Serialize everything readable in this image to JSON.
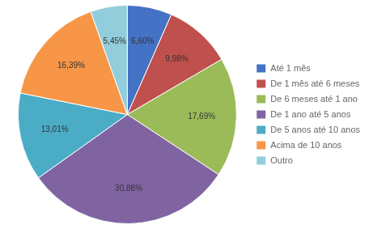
{
  "chart_data": {
    "type": "pie",
    "categories": [
      "Até 1 mês",
      "De 1 mês até 6 meses",
      "De 6 meses até 1 ano",
      "De 1 ano até 5 anos",
      "De 5 anos até 10 anos",
      "Acima de 10 anos",
      "Outro"
    ],
    "values": [
      6.6,
      9.98,
      17.69,
      30.88,
      13.01,
      16.39,
      5.45
    ],
    "value_labels": [
      "6,60%",
      "9,98%",
      "17,69%",
      "30,88%",
      "13,01%",
      "16,39%",
      "5,45%"
    ],
    "colors": [
      "#4472C4",
      "#C0504D",
      "#9BBB59",
      "#8064A2",
      "#4BACC6",
      "#F79646",
      "#92CDDC"
    ],
    "data_labels": true,
    "legend": "right"
  }
}
